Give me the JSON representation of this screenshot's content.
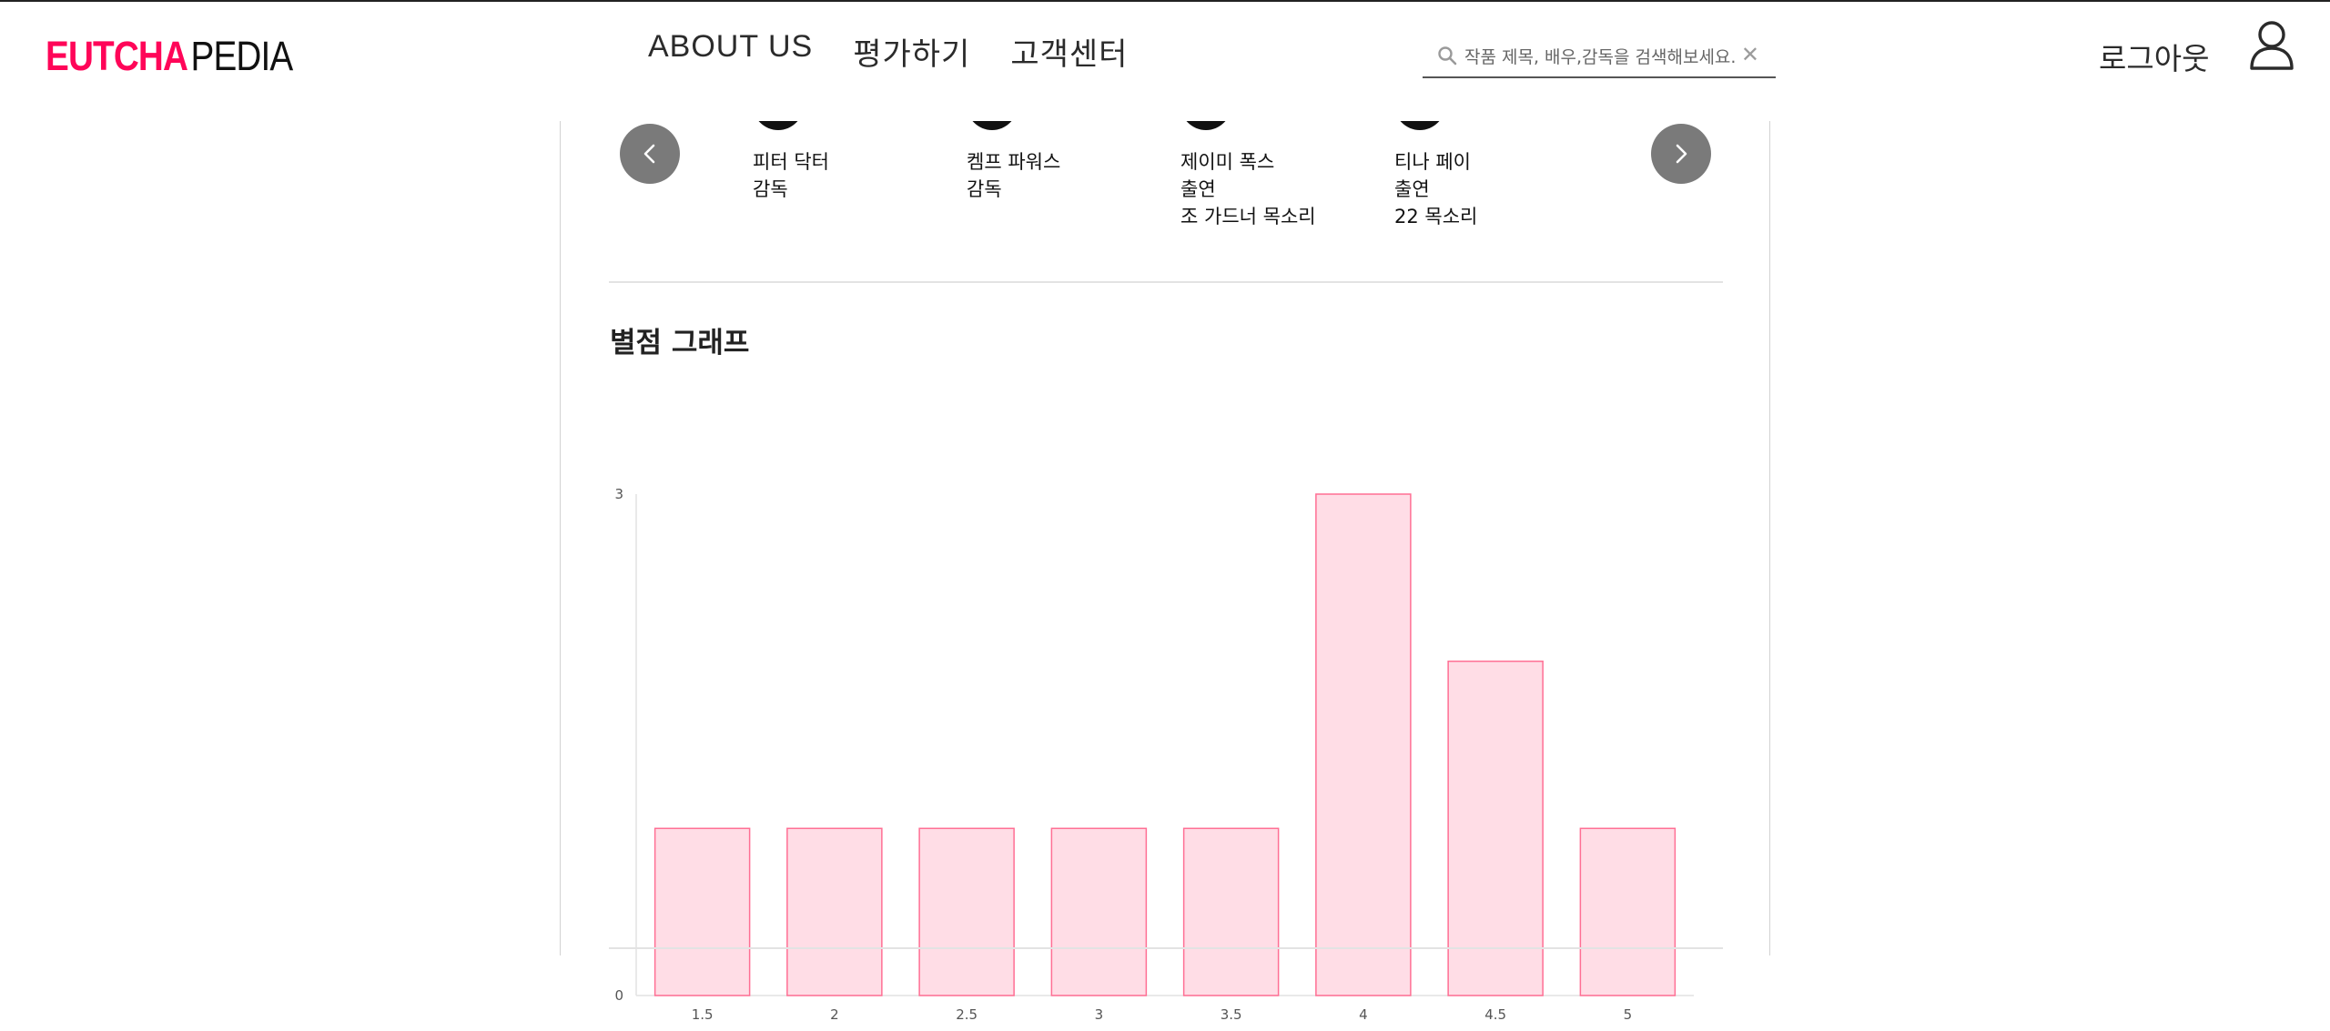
{
  "header": {
    "logo": {
      "part1": "EUTCHA",
      "part2": "PEDIA",
      "color": "#ff0558"
    },
    "nav": [
      "ABOUT US",
      "평가하기",
      "고객센터"
    ],
    "search": {
      "placeholder": "작품 제목, 배우,감독을 검색해보세요.",
      "value": ""
    },
    "logout_label": "로그아웃",
    "icons": {
      "search": "search-icon",
      "clear": "close-icon",
      "profile": "user-icon"
    }
  },
  "people": [
    {
      "name": "피터 닥터",
      "roles": [
        "감독"
      ]
    },
    {
      "name": "켐프 파워스",
      "roles": [
        "감독"
      ]
    },
    {
      "name": "제이미 폭스",
      "roles": [
        "출연",
        "조 가드너 목소리"
      ]
    },
    {
      "name": "티나 페이",
      "roles": [
        "출연",
        "22 목소리"
      ]
    }
  ],
  "carousel": {
    "prev_icon": "chevron-left-icon",
    "next_icon": "chevron-right-icon"
  },
  "rating_section": {
    "title": "별점 그래프"
  },
  "chart_data": {
    "type": "bar",
    "categories": [
      "1.5",
      "2",
      "2.5",
      "3",
      "3.5",
      "4",
      "4.5",
      "5"
    ],
    "values": [
      1,
      1,
      1,
      1,
      1,
      3,
      2,
      1
    ],
    "ylim": [
      0,
      3
    ],
    "yticks": [
      "0",
      "3"
    ],
    "title": "",
    "xlabel": "",
    "ylabel": "",
    "bar_fill": "#ffdde6",
    "bar_stroke": "#ff6f94",
    "grid": false
  }
}
